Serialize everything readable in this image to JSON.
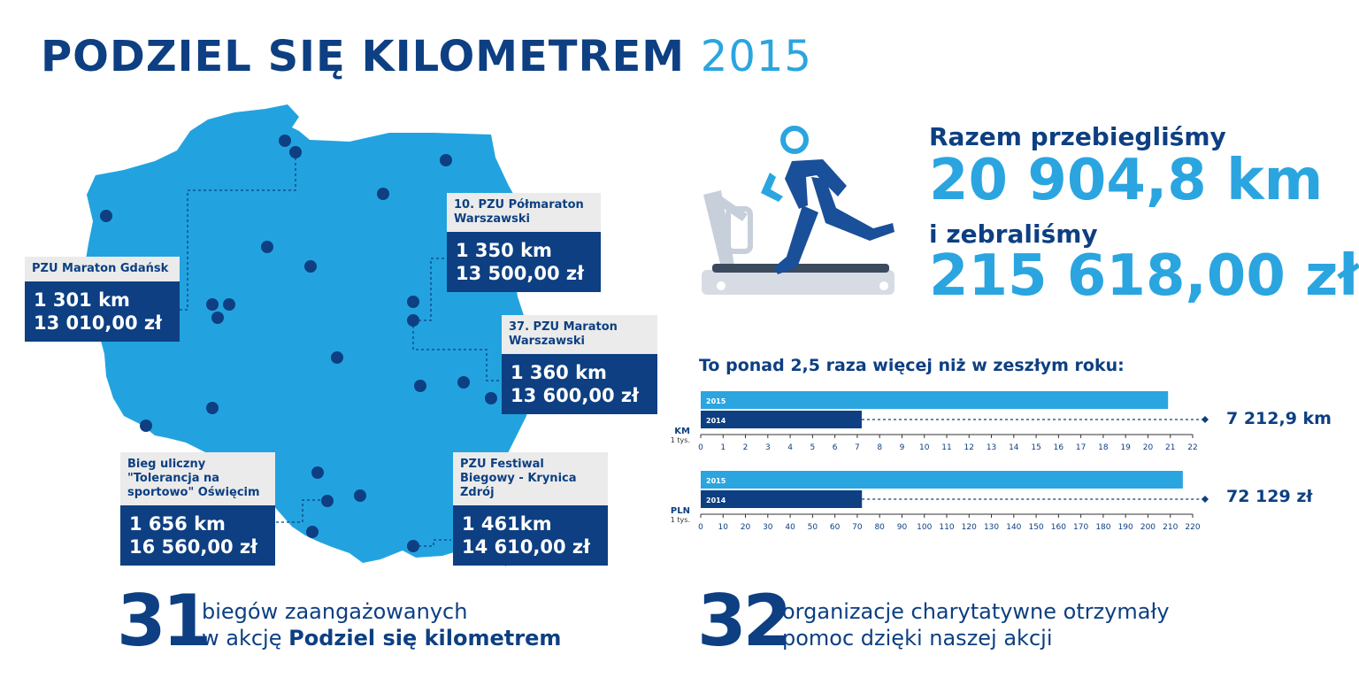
{
  "title": {
    "main": "PODZIEL SIĘ KILOMETREM",
    "year": "2015"
  },
  "colors": {
    "navy": "#0d3f82",
    "light_blue": "#2aa5e0",
    "map_blue": "#22a3df",
    "gray_box": "#ebebeb"
  },
  "events": [
    {
      "name": "PZU Maraton Gdańsk",
      "km": "1 301 km",
      "pln": "13 010,00 zł"
    },
    {
      "name": "10. PZU Półmaraton Warszawski",
      "km": "1 350 km",
      "pln": "13 500,00 zł"
    },
    {
      "name": "37. PZU Maraton Warszawski",
      "km": "1 360 km",
      "pln": "13 600,00 zł"
    },
    {
      "name": "Bieg uliczny \"Tolerancja na sportowo\" Oświęcim",
      "km": "1 656 km",
      "pln": "16 560,00 zł"
    },
    {
      "name": "PZU Festiwal Biegowy - Krynica Zdrój",
      "km": "1 461km",
      "pln": "14 610,00 zł"
    }
  ],
  "totals": {
    "run_label": "Razem przebiegliśmy",
    "run_value": "20 904,8 km",
    "raised_label": "i zebraliśmy",
    "raised_value": "215 618,00 zł"
  },
  "comparison_title": "To ponad 2,5 raza więcej niż w zeszłym roku:",
  "chart_data": [
    {
      "type": "bar",
      "orientation": "horizontal",
      "ylabel": "KM",
      "unit": "1 tys.",
      "categories": [
        "2015",
        "2014"
      ],
      "values": [
        20.9,
        7.2
      ],
      "xlim": [
        0,
        22
      ],
      "ticks": [
        0,
        1,
        2,
        3,
        4,
        5,
        6,
        7,
        8,
        9,
        10,
        11,
        12,
        13,
        14,
        15,
        16,
        17,
        18,
        19,
        20,
        21,
        22
      ],
      "annotation": "7 212,9 km"
    },
    {
      "type": "bar",
      "orientation": "horizontal",
      "ylabel": "PLN",
      "unit": "1 tys.",
      "categories": [
        "2015",
        "2014"
      ],
      "values": [
        215.6,
        72.1
      ],
      "xlim": [
        0,
        220
      ],
      "ticks": [
        0,
        10,
        20,
        30,
        40,
        50,
        60,
        70,
        80,
        90,
        100,
        110,
        120,
        130,
        140,
        150,
        160,
        170,
        180,
        190,
        200,
        210,
        220
      ],
      "annotation": "72 129 zł"
    }
  ],
  "bottom": {
    "runs_count": "31",
    "runs_text_1": "biegów zaangażowanych",
    "runs_text_2a": "w akcję ",
    "runs_text_2b": "Podziel się kilometrem",
    "orgs_count": "32",
    "orgs_text_1": "organizacje charytatywne otrzymały",
    "orgs_text_2": "pomoc dzięki naszej akcji"
  }
}
